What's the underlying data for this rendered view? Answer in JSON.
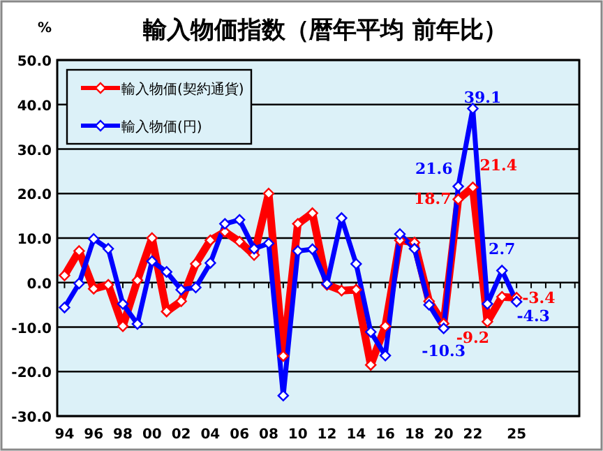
{
  "chart_data": {
    "type": "line",
    "title": "輸入物価指数（暦年平均 前年比）",
    "ylabel": "%",
    "x": [
      1994,
      1995,
      1996,
      1997,
      1998,
      1999,
      2000,
      2001,
      2002,
      2003,
      2004,
      2005,
      2006,
      2007,
      2008,
      2009,
      2010,
      2011,
      2012,
      2013,
      2014,
      2015,
      2016,
      2017,
      2018,
      2019,
      2020,
      2021,
      2022,
      2023,
      2024,
      2025
    ],
    "series": [
      {
        "name": "輸入物価(契約通貨)",
        "color": "#ff0000",
        "values": [
          1.6,
          7.1,
          -1.4,
          -0.5,
          -9.8,
          0.5,
          10.0,
          -6.5,
          -4.2,
          4.2,
          9.5,
          11.4,
          9.2,
          6.2,
          20.0,
          -16.5,
          13.2,
          15.6,
          -0.5,
          -1.8,
          -1.6,
          -18.5,
          -9.8,
          9.5,
          9.0,
          -4.2,
          -9.2,
          18.7,
          21.4,
          -8.8,
          -3.2,
          -3.4
        ],
        "value_labels": [
          null,
          null,
          null,
          null,
          null,
          null,
          null,
          null,
          null,
          null,
          null,
          null,
          null,
          null,
          null,
          null,
          null,
          null,
          null,
          null,
          null,
          null,
          null,
          null,
          null,
          null,
          "-9.2",
          "18.7",
          "21.4",
          null,
          null,
          "-3.4"
        ]
      },
      {
        "name": "輸入物価(円)",
        "color": "#0000ff",
        "values": [
          -5.6,
          -0.2,
          9.8,
          7.6,
          -4.8,
          -9.3,
          4.8,
          2.4,
          -1.6,
          -1.1,
          4.4,
          13.2,
          14.1,
          7.6,
          8.8,
          -25.4,
          7.1,
          7.5,
          -0.3,
          14.5,
          4.2,
          -11.1,
          -16.4,
          10.9,
          7.6,
          -5.0,
          -10.3,
          21.6,
          39.1,
          -4.8,
          2.7,
          -4.3
        ],
        "value_labels": [
          null,
          null,
          null,
          null,
          null,
          null,
          null,
          null,
          null,
          null,
          null,
          null,
          null,
          null,
          null,
          null,
          null,
          null,
          null,
          null,
          null,
          null,
          null,
          null,
          null,
          null,
          "-10.3",
          "21.6",
          "39.1",
          null,
          "2.7",
          "-4.3"
        ]
      }
    ],
    "xlim": [
      1993.5,
      2029.3
    ],
    "xticks": [
      {
        "value": 1994,
        "label": "94"
      },
      {
        "value": 1995,
        "label": null
      },
      {
        "value": 1996,
        "label": "96"
      },
      {
        "value": 1997,
        "label": null
      },
      {
        "value": 1998,
        "label": "98"
      },
      {
        "value": 1999,
        "label": null
      },
      {
        "value": 2000,
        "label": "00"
      },
      {
        "value": 2001,
        "label": null
      },
      {
        "value": 2002,
        "label": "02"
      },
      {
        "value": 2003,
        "label": null
      },
      {
        "value": 2004,
        "label": "04"
      },
      {
        "value": 2005,
        "label": null
      },
      {
        "value": 2006,
        "label": "06"
      },
      {
        "value": 2007,
        "label": null
      },
      {
        "value": 2008,
        "label": "08"
      },
      {
        "value": 2009,
        "label": null
      },
      {
        "value": 2010,
        "label": "10"
      },
      {
        "value": 2011,
        "label": null
      },
      {
        "value": 2012,
        "label": "12"
      },
      {
        "value": 2013,
        "label": null
      },
      {
        "value": 2014,
        "label": "14"
      },
      {
        "value": 2015,
        "label": null
      },
      {
        "value": 2016,
        "label": "16"
      },
      {
        "value": 2017,
        "label": null
      },
      {
        "value": 2018,
        "label": "18"
      },
      {
        "value": 2019,
        "label": null
      },
      {
        "value": 2020,
        "label": "20"
      },
      {
        "value": 2021,
        "label": null
      },
      {
        "value": 2022,
        "label": "22"
      },
      {
        "value": 2023,
        "label": null
      },
      {
        "value": 2024,
        "label": null
      },
      {
        "value": 2025,
        "label": "25"
      },
      {
        "value": 2026,
        "label": null
      },
      {
        "value": 2027,
        "label": null
      },
      {
        "value": 2028,
        "label": null
      },
      {
        "value": 2029,
        "label": null
      }
    ],
    "ylim": [
      -30,
      50
    ],
    "yticks": [
      {
        "value": 50,
        "label": "50.0"
      },
      {
        "value": 40,
        "label": "40.0"
      },
      {
        "value": 30,
        "label": "30.0"
      },
      {
        "value": 20,
        "label": "20.0"
      },
      {
        "value": 10,
        "label": "10.0"
      },
      {
        "value": 0,
        "label": "0.0"
      },
      {
        "value": -10,
        "label": "-10.0"
      },
      {
        "value": -20,
        "label": "-20.0"
      },
      {
        "value": -30,
        "label": "-30.0"
      }
    ],
    "grid": "y",
    "legend": "top left",
    "marker": "diamond",
    "line_style": "solid"
  }
}
